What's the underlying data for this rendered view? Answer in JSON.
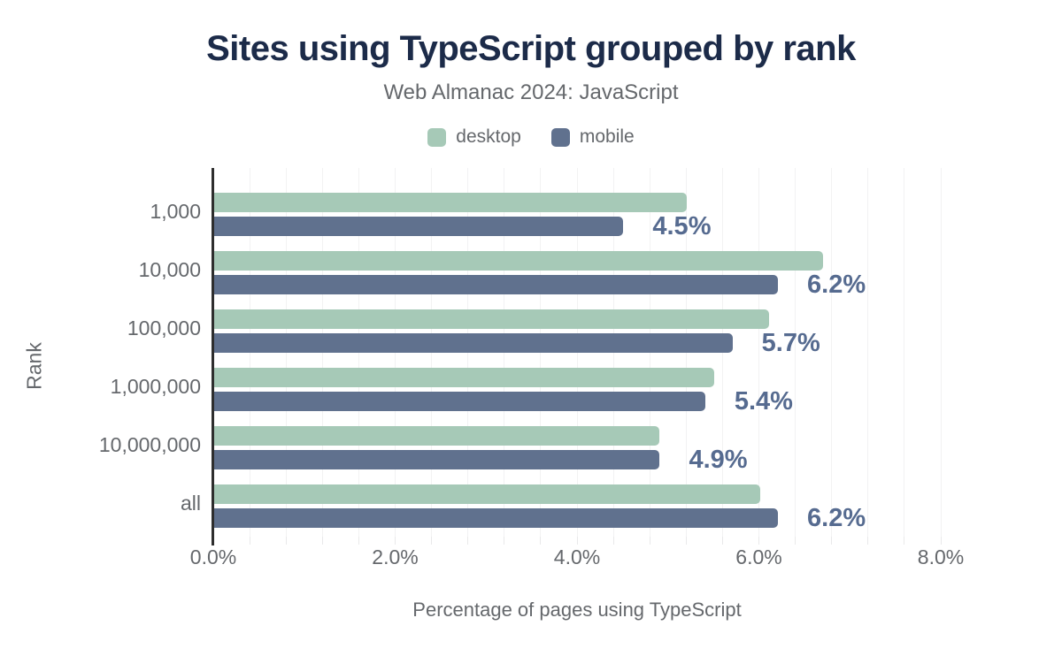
{
  "header": {
    "title": "Sites using TypeScript grouped by rank",
    "subtitle": "Web Almanac 2024: JavaScript"
  },
  "colors": {
    "title": "#1c2b49",
    "muted_text": "#65686c",
    "desktop": "#a6c9b7",
    "mobile": "#60718e",
    "data_label": "#566b90",
    "axis_line": "#2e2e2e",
    "gridline": "#f2f2f3"
  },
  "chart_data": {
    "type": "bar",
    "orientation": "horizontal",
    "title": "Sites using TypeScript grouped by rank",
    "subtitle": "Web Almanac 2024: JavaScript",
    "categories": [
      "1,000",
      "10,000",
      "100,000",
      "1,000,000",
      "10,000,000",
      "all"
    ],
    "series": [
      {
        "name": "desktop",
        "color": "#a6c9b7",
        "values": [
          5.2,
          6.7,
          6.1,
          5.5,
          4.9,
          6.0
        ]
      },
      {
        "name": "mobile",
        "color": "#60718e",
        "values": [
          4.5,
          6.2,
          5.7,
          5.4,
          4.9,
          6.2
        ],
        "data_labels": [
          "4.5%",
          "6.2%",
          "5.7%",
          "5.4%",
          "4.9%",
          "6.2%"
        ]
      }
    ],
    "xlabel": "Percentage of pages using TypeScript",
    "ylabel": "Rank",
    "x_ticks": [
      {
        "label": "0.0%",
        "value": 0
      },
      {
        "label": "2.0%",
        "value": 2
      },
      {
        "label": "4.0%",
        "value": 4
      },
      {
        "label": "6.0%",
        "value": 6
      },
      {
        "label": "8.0%",
        "value": 8
      }
    ],
    "xlim": [
      0,
      8
    ],
    "grid_interval": 0.4,
    "grid": true,
    "legend_position": "top",
    "data_labels_on": "mobile"
  }
}
